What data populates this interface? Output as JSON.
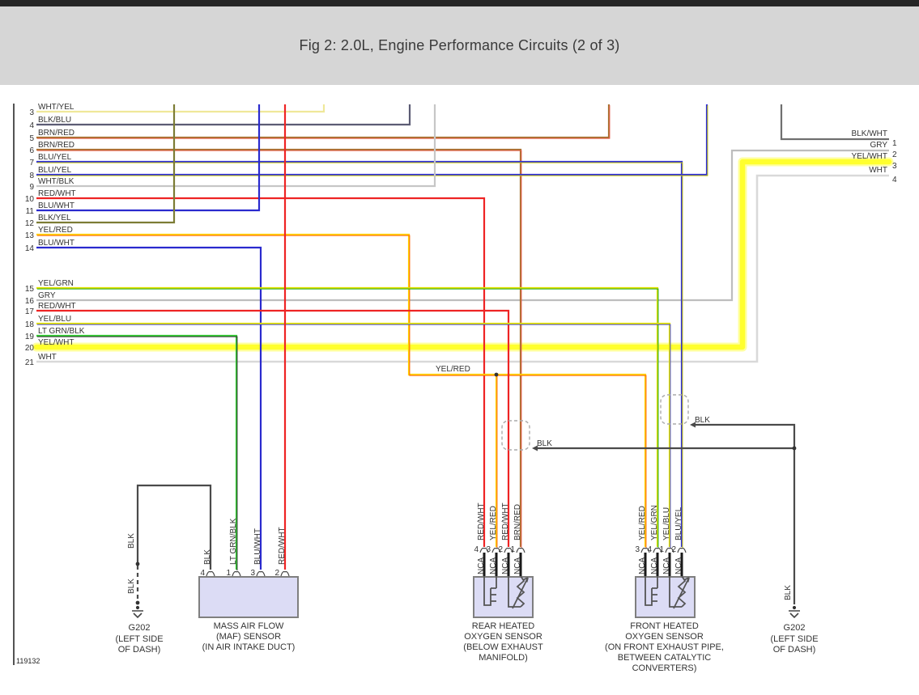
{
  "header": {
    "title": "Fig 2: 2.0L, Engine Performance Circuits (2 of 3)"
  },
  "footer": {
    "code": "119132"
  },
  "colors": {
    "topbar": "#262626",
    "banner_bg": "#d6d6d6",
    "text": "#333333",
    "border": "#1a1a1a",
    "box_fill": "#dcdcf5",
    "box_border": "#7f7f7f",
    "symbol": "#555555",
    "shield": "#aaaaaa",
    "wht_yel": "#efe89a",
    "blk_blu": "#5c5c74",
    "brn_red": "#a5712f",
    "blu_yel": "#2f2fd8",
    "wht_blk": "#c6c6c6",
    "red_wht": "#ee2424",
    "blu_wht": "#2a2ace",
    "blk_yel": "#7c7c35",
    "yel_red": "#ffd300",
    "yel_grn": "#e3e000",
    "gry": "#bdbdbd",
    "yel_blu": "#e8e800",
    "lt_grn_blk": "#33cf33",
    "yel_wht": "#ffff2e",
    "yel_wht_halo": "#ffffa0",
    "wht": "#d9d9d9",
    "blk": "#4a4a4a",
    "blk_wht": "#6f6f6f"
  },
  "left_wires": [
    {
      "num": "3",
      "label": "WHT/YEL",
      "color": "wht_yel"
    },
    {
      "num": "4",
      "label": "BLK/BLU",
      "color": "blk_blu"
    },
    {
      "num": "5",
      "label": "BRN/RED",
      "color": "brn_red"
    },
    {
      "num": "6",
      "label": "BRN/RED",
      "color": "brn_red"
    },
    {
      "num": "7",
      "label": "BLU/YEL",
      "color": "blu_yel"
    },
    {
      "num": "8",
      "label": "BLU/YEL",
      "color": "blu_yel"
    },
    {
      "num": "9",
      "label": "WHT/BLK",
      "color": "wht_blk"
    },
    {
      "num": "10",
      "label": "RED/WHT",
      "color": "red_wht"
    },
    {
      "num": "11",
      "label": "BLU/WHT",
      "color": "blu_wht"
    },
    {
      "num": "12",
      "label": "BLK/YEL",
      "color": "blk_yel"
    },
    {
      "num": "13",
      "label": "YEL/RED",
      "color": "yel_red"
    },
    {
      "num": "14",
      "label": "BLU/WHT",
      "color": "blu_wht"
    },
    {
      "num": "15",
      "label": "YEL/GRN",
      "color": "yel_grn"
    },
    {
      "num": "16",
      "label": "GRY",
      "color": "gry"
    },
    {
      "num": "17",
      "label": "RED/WHT",
      "color": "red_wht"
    },
    {
      "num": "18",
      "label": "YEL/BLU",
      "color": "yel_blu"
    },
    {
      "num": "19",
      "label": "LT GRN/BLK",
      "color": "lt_grn_blk"
    },
    {
      "num": "20",
      "label": "YEL/WHT",
      "color": "yel_wht"
    },
    {
      "num": "21",
      "label": "WHT",
      "color": "wht"
    }
  ],
  "right_wires": [
    {
      "num": "1",
      "label": "BLK/WHT",
      "color": "blk_wht"
    },
    {
      "num": "2",
      "label": "GRY",
      "color": "gry"
    },
    {
      "num": "3",
      "label": "YEL/WHT",
      "color": "yel_wht"
    },
    {
      "num": "4",
      "label": "WHT",
      "color": "wht"
    }
  ],
  "inline_labels": {
    "yel_red": "YEL/RED",
    "blk_upper": "BLK",
    "blk_lower": "BLK"
  },
  "grounds": {
    "left": {
      "name": "G202",
      "loc": [
        "(LEFT SIDE",
        "OF DASH)"
      ],
      "wire_labels": [
        "BLK",
        "BLK"
      ]
    },
    "right": {
      "name": "G202",
      "loc": [
        "(LEFT SIDE",
        "OF DASH)"
      ],
      "wire_label": "BLK"
    }
  },
  "components": {
    "maf": {
      "caption": [
        "MASS AIR FLOW",
        "(MAF) SENSOR",
        "(IN AIR INTAKE DUCT)"
      ],
      "pins": [
        {
          "num": "4",
          "label": "BLK",
          "color": "blk"
        },
        {
          "num": "1",
          "label": "LT GRN/BLK",
          "color": "lt_grn_blk"
        },
        {
          "num": "3",
          "label": "BLU/WHT",
          "color": "blu_wht"
        },
        {
          "num": "2",
          "label": "RED/WHT",
          "color": "red_wht"
        }
      ]
    },
    "rear_o2": {
      "caption": [
        "REAR HEATED",
        "OXYGEN SENSOR",
        "(BELOW EXHAUST",
        "MANIFOLD)"
      ],
      "pins": [
        {
          "num": "4",
          "label": "RED/WHT",
          "nca": "NCA",
          "color": "red_wht"
        },
        {
          "num": "3",
          "label": "YEL/RED",
          "nca": "NCA",
          "color": "yel_red"
        },
        {
          "num": "2",
          "label": "RED/WHT",
          "nca": "NCA",
          "color": "red_wht"
        },
        {
          "num": "1",
          "label": "BRN/RED",
          "nca": "NCA",
          "color": "brn_red"
        }
      ]
    },
    "front_o2": {
      "caption": [
        "FRONT HEATED",
        "OXYGEN SENSOR",
        "(ON FRONT EXHAUST PIPE,",
        "BETWEEN CATALYTIC",
        "CONVERTERS)"
      ],
      "pins": [
        {
          "num": "3",
          "label": "YEL/RED",
          "nca": "NCA",
          "color": "yel_red"
        },
        {
          "num": "4",
          "label": "YEL/GRN",
          "nca": "NCA",
          "color": "yel_grn"
        },
        {
          "num": "1",
          "label": "YEL/BLU",
          "nca": "NCA",
          "color": "yel_blu"
        },
        {
          "num": "2",
          "label": "BLU/YEL",
          "nca": "NCA",
          "color": "blu_yel"
        }
      ]
    }
  }
}
